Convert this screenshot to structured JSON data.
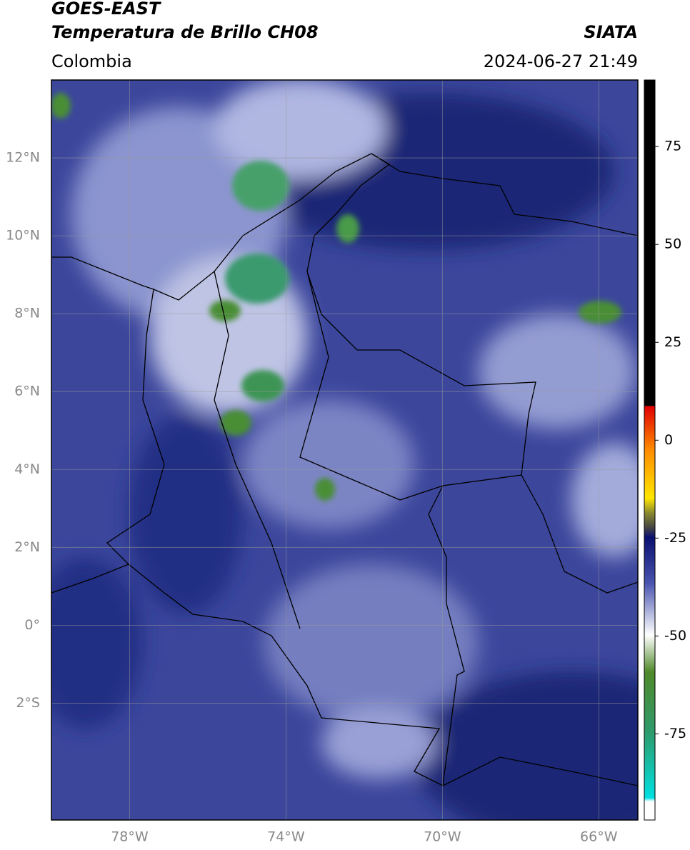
{
  "header": {
    "title": "GOES-EAST",
    "subtitle": "Temperatura de Brillo CH08",
    "source": "SIATA",
    "region": "Colombia",
    "timestamp": "2024-06-27 21:49"
  },
  "map": {
    "xlim": [
      -80,
      -65
    ],
    "ylim": [
      -5,
      14
    ],
    "grid": true,
    "xticks": [
      {
        "value": -78,
        "label": "78°W"
      },
      {
        "value": -74,
        "label": "74°W"
      },
      {
        "value": -70,
        "label": "70°W"
      },
      {
        "value": -66,
        "label": "66°W"
      }
    ],
    "yticks": [
      {
        "value": 12,
        "label": "12°N"
      },
      {
        "value": 10,
        "label": "10°N"
      },
      {
        "value": 8,
        "label": "8°N"
      },
      {
        "value": 6,
        "label": "6°N"
      },
      {
        "value": 4,
        "label": "4°N"
      },
      {
        "value": 2,
        "label": "2°N"
      },
      {
        "value": 0,
        "label": "0°"
      },
      {
        "value": -2,
        "label": "2°S"
      }
    ]
  },
  "colorbar": {
    "lim": [
      -97,
      92
    ],
    "ticks": [
      75,
      50,
      25,
      0,
      -25,
      -50,
      -75
    ]
  }
}
